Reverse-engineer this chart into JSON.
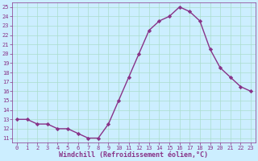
{
  "x": [
    0,
    1,
    2,
    3,
    4,
    5,
    6,
    7,
    8,
    9,
    10,
    11,
    12,
    13,
    14,
    15,
    16,
    17,
    18,
    19,
    20,
    21,
    22,
    23
  ],
  "y": [
    13,
    13,
    12.5,
    12.5,
    12,
    12,
    11.5,
    11,
    11,
    12.5,
    15,
    17.5,
    20,
    22.5,
    23.5,
    24,
    25,
    24.5,
    23.5,
    20.5,
    18.5,
    17.5,
    16.5,
    16
  ],
  "line_color": "#883388",
  "marker": "D",
  "markersize": 2.2,
  "linewidth": 1.0,
  "bg_color": "#cceeff",
  "grid_color": "#aaddcc",
  "xlabel": "Windchill (Refroidissement éolien,°C)",
  "xlabel_color": "#883388",
  "tick_color": "#883388",
  "ylim": [
    10.5,
    25.5
  ],
  "xlim": [
    -0.5,
    23.5
  ],
  "yticks": [
    11,
    12,
    13,
    14,
    15,
    16,
    17,
    18,
    19,
    20,
    21,
    22,
    23,
    24,
    25
  ],
  "xticks": [
    0,
    1,
    2,
    3,
    4,
    5,
    6,
    7,
    8,
    9,
    10,
    11,
    12,
    13,
    14,
    15,
    16,
    17,
    18,
    19,
    20,
    21,
    22,
    23
  ],
  "tick_fontsize": 5.0,
  "xlabel_fontsize": 6.0
}
